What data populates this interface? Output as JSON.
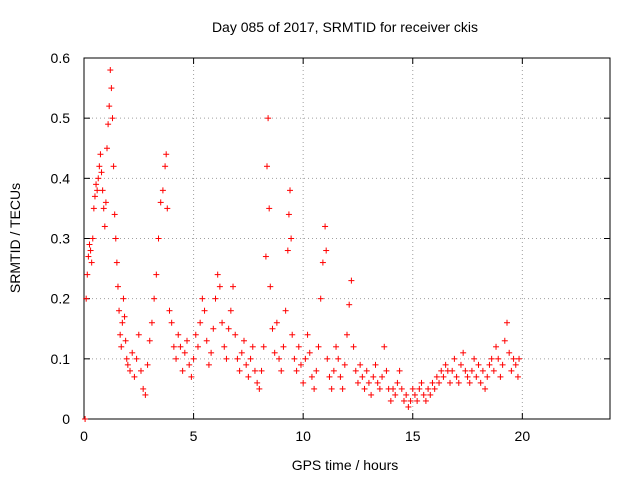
{
  "chart_data": {
    "type": "scatter",
    "title": "Day 085 of 2017, SRMTID for receiver ckis",
    "xlabel": "GPS time / hours",
    "ylabel": "SRMTID / TECUs",
    "xlim": [
      0,
      24
    ],
    "ylim": [
      0,
      0.6
    ],
    "xticks": [
      0,
      5,
      10,
      15,
      20
    ],
    "yticks": [
      0,
      0.1,
      0.2,
      0.3,
      0.4,
      0.5,
      0.6
    ],
    "xtick_labels": [
      "0",
      "5",
      "10",
      "15",
      "20"
    ],
    "ytick_labels": [
      "0",
      "0.1",
      "0.2",
      "0.3",
      "0.4",
      "0.5",
      "0.6"
    ],
    "grid": true,
    "marker": "+",
    "color": "#ff0000",
    "series": [
      {
        "name": "SRMTID",
        "points": [
          [
            0.05,
            0.0
          ],
          [
            0.1,
            0.2
          ],
          [
            0.15,
            0.24
          ],
          [
            0.2,
            0.27
          ],
          [
            0.25,
            0.29
          ],
          [
            0.3,
            0.28
          ],
          [
            0.35,
            0.26
          ],
          [
            0.4,
            0.3
          ],
          [
            0.45,
            0.35
          ],
          [
            0.5,
            0.37
          ],
          [
            0.55,
            0.39
          ],
          [
            0.6,
            0.38
          ],
          [
            0.65,
            0.4
          ],
          [
            0.7,
            0.42
          ],
          [
            0.75,
            0.44
          ],
          [
            0.8,
            0.41
          ],
          [
            0.85,
            0.38
          ],
          [
            0.9,
            0.35
          ],
          [
            0.95,
            0.32
          ],
          [
            1.0,
            0.36
          ],
          [
            1.05,
            0.45
          ],
          [
            1.1,
            0.49
          ],
          [
            1.15,
            0.52
          ],
          [
            1.2,
            0.58
          ],
          [
            1.25,
            0.55
          ],
          [
            1.3,
            0.5
          ],
          [
            1.35,
            0.42
          ],
          [
            1.4,
            0.34
          ],
          [
            1.45,
            0.3
          ],
          [
            1.5,
            0.26
          ],
          [
            1.55,
            0.22
          ],
          [
            1.6,
            0.18
          ],
          [
            1.65,
            0.14
          ],
          [
            1.7,
            0.12
          ],
          [
            1.75,
            0.16
          ],
          [
            1.8,
            0.2
          ],
          [
            1.85,
            0.17
          ],
          [
            1.9,
            0.13
          ],
          [
            1.95,
            0.1
          ],
          [
            2.0,
            0.09
          ],
          [
            2.1,
            0.08
          ],
          [
            2.2,
            0.11
          ],
          [
            2.3,
            0.07
          ],
          [
            2.4,
            0.1
          ],
          [
            2.5,
            0.14
          ],
          [
            2.6,
            0.08
          ],
          [
            2.7,
            0.05
          ],
          [
            2.8,
            0.04
          ],
          [
            2.9,
            0.09
          ],
          [
            3.0,
            0.13
          ],
          [
            3.1,
            0.16
          ],
          [
            3.2,
            0.2
          ],
          [
            3.3,
            0.24
          ],
          [
            3.4,
            0.3
          ],
          [
            3.5,
            0.36
          ],
          [
            3.6,
            0.38
          ],
          [
            3.7,
            0.42
          ],
          [
            3.75,
            0.44
          ],
          [
            3.8,
            0.35
          ],
          [
            3.9,
            0.18
          ],
          [
            4.0,
            0.16
          ],
          [
            4.1,
            0.12
          ],
          [
            4.2,
            0.1
          ],
          [
            4.3,
            0.14
          ],
          [
            4.4,
            0.12
          ],
          [
            4.5,
            0.08
          ],
          [
            4.6,
            0.11
          ],
          [
            4.7,
            0.13
          ],
          [
            4.8,
            0.09
          ],
          [
            4.9,
            0.07
          ],
          [
            5.0,
            0.1
          ],
          [
            5.1,
            0.14
          ],
          [
            5.2,
            0.12
          ],
          [
            5.3,
            0.16
          ],
          [
            5.4,
            0.2
          ],
          [
            5.5,
            0.18
          ],
          [
            5.6,
            0.13
          ],
          [
            5.7,
            0.09
          ],
          [
            5.8,
            0.11
          ],
          [
            5.9,
            0.15
          ],
          [
            6.0,
            0.2
          ],
          [
            6.1,
            0.24
          ],
          [
            6.2,
            0.22
          ],
          [
            6.3,
            0.16
          ],
          [
            6.4,
            0.12
          ],
          [
            6.5,
            0.1
          ],
          [
            6.6,
            0.15
          ],
          [
            6.7,
            0.18
          ],
          [
            6.8,
            0.22
          ],
          [
            6.9,
            0.14
          ],
          [
            7.0,
            0.1
          ],
          [
            7.1,
            0.08
          ],
          [
            7.2,
            0.11
          ],
          [
            7.3,
            0.13
          ],
          [
            7.4,
            0.09
          ],
          [
            7.5,
            0.07
          ],
          [
            7.6,
            0.1
          ],
          [
            7.7,
            0.12
          ],
          [
            7.8,
            0.08
          ],
          [
            7.9,
            0.06
          ],
          [
            8.0,
            0.05
          ],
          [
            8.1,
            0.08
          ],
          [
            8.2,
            0.12
          ],
          [
            8.3,
            0.27
          ],
          [
            8.35,
            0.42
          ],
          [
            8.4,
            0.5
          ],
          [
            8.45,
            0.35
          ],
          [
            8.5,
            0.22
          ],
          [
            8.6,
            0.15
          ],
          [
            8.7,
            0.11
          ],
          [
            8.8,
            0.16
          ],
          [
            8.9,
            0.1
          ],
          [
            9.0,
            0.08
          ],
          [
            9.1,
            0.12
          ],
          [
            9.2,
            0.18
          ],
          [
            9.3,
            0.28
          ],
          [
            9.35,
            0.34
          ],
          [
            9.4,
            0.38
          ],
          [
            9.45,
            0.3
          ],
          [
            9.5,
            0.14
          ],
          [
            9.6,
            0.1
          ],
          [
            9.7,
            0.08
          ],
          [
            9.8,
            0.12
          ],
          [
            9.9,
            0.09
          ],
          [
            10.0,
            0.06
          ],
          [
            10.1,
            0.1
          ],
          [
            10.2,
            0.14
          ],
          [
            10.3,
            0.11
          ],
          [
            10.4,
            0.07
          ],
          [
            10.5,
            0.05
          ],
          [
            10.6,
            0.08
          ],
          [
            10.7,
            0.12
          ],
          [
            10.8,
            0.2
          ],
          [
            10.9,
            0.26
          ],
          [
            11.0,
            0.32
          ],
          [
            11.05,
            0.28
          ],
          [
            11.1,
            0.1
          ],
          [
            11.2,
            0.07
          ],
          [
            11.3,
            0.05
          ],
          [
            11.4,
            0.08
          ],
          [
            11.5,
            0.12
          ],
          [
            11.6,
            0.1
          ],
          [
            11.7,
            0.07
          ],
          [
            11.8,
            0.05
          ],
          [
            11.9,
            0.09
          ],
          [
            12.0,
            0.14
          ],
          [
            12.1,
            0.19
          ],
          [
            12.2,
            0.23
          ],
          [
            12.3,
            0.12
          ],
          [
            12.4,
            0.08
          ],
          [
            12.5,
            0.06
          ],
          [
            12.6,
            0.09
          ],
          [
            12.7,
            0.07
          ],
          [
            12.8,
            0.05
          ],
          [
            12.9,
            0.08
          ],
          [
            13.0,
            0.06
          ],
          [
            13.1,
            0.04
          ],
          [
            13.2,
            0.07
          ],
          [
            13.3,
            0.09
          ],
          [
            13.4,
            0.06
          ],
          [
            13.5,
            0.05
          ],
          [
            13.6,
            0.07
          ],
          [
            13.7,
            0.12
          ],
          [
            13.8,
            0.08
          ],
          [
            13.9,
            0.05
          ],
          [
            14.0,
            0.03
          ],
          [
            14.1,
            0.05
          ],
          [
            14.2,
            0.04
          ],
          [
            14.3,
            0.06
          ],
          [
            14.4,
            0.08
          ],
          [
            14.5,
            0.05
          ],
          [
            14.6,
            0.03
          ],
          [
            14.7,
            0.04
          ],
          [
            14.8,
            0.02
          ],
          [
            14.9,
            0.03
          ],
          [
            15.0,
            0.05
          ],
          [
            15.1,
            0.04
          ],
          [
            15.2,
            0.03
          ],
          [
            15.3,
            0.05
          ],
          [
            15.4,
            0.06
          ],
          [
            15.5,
            0.04
          ],
          [
            15.6,
            0.03
          ],
          [
            15.7,
            0.05
          ],
          [
            15.8,
            0.04
          ],
          [
            15.9,
            0.06
          ],
          [
            16.0,
            0.05
          ],
          [
            16.1,
            0.07
          ],
          [
            16.2,
            0.06
          ],
          [
            16.3,
            0.08
          ],
          [
            16.4,
            0.07
          ],
          [
            16.5,
            0.09
          ],
          [
            16.6,
            0.08
          ],
          [
            16.7,
            0.06
          ],
          [
            16.8,
            0.08
          ],
          [
            16.9,
            0.1
          ],
          [
            17.0,
            0.07
          ],
          [
            17.1,
            0.06
          ],
          [
            17.2,
            0.09
          ],
          [
            17.3,
            0.11
          ],
          [
            17.4,
            0.08
          ],
          [
            17.5,
            0.07
          ],
          [
            17.6,
            0.06
          ],
          [
            17.7,
            0.08
          ],
          [
            17.8,
            0.1
          ],
          [
            17.9,
            0.07
          ],
          [
            18.0,
            0.09
          ],
          [
            18.1,
            0.06
          ],
          [
            18.2,
            0.08
          ],
          [
            18.3,
            0.05
          ],
          [
            18.4,
            0.07
          ],
          [
            18.5,
            0.09
          ],
          [
            18.6,
            0.1
          ],
          [
            18.7,
            0.08
          ],
          [
            18.8,
            0.12
          ],
          [
            18.9,
            0.1
          ],
          [
            19.0,
            0.07
          ],
          [
            19.1,
            0.09
          ],
          [
            19.2,
            0.13
          ],
          [
            19.3,
            0.16
          ],
          [
            19.4,
            0.11
          ],
          [
            19.5,
            0.08
          ],
          [
            19.6,
            0.1
          ],
          [
            19.7,
            0.09
          ],
          [
            19.8,
            0.07
          ],
          [
            19.85,
            0.1
          ]
        ]
      }
    ]
  }
}
